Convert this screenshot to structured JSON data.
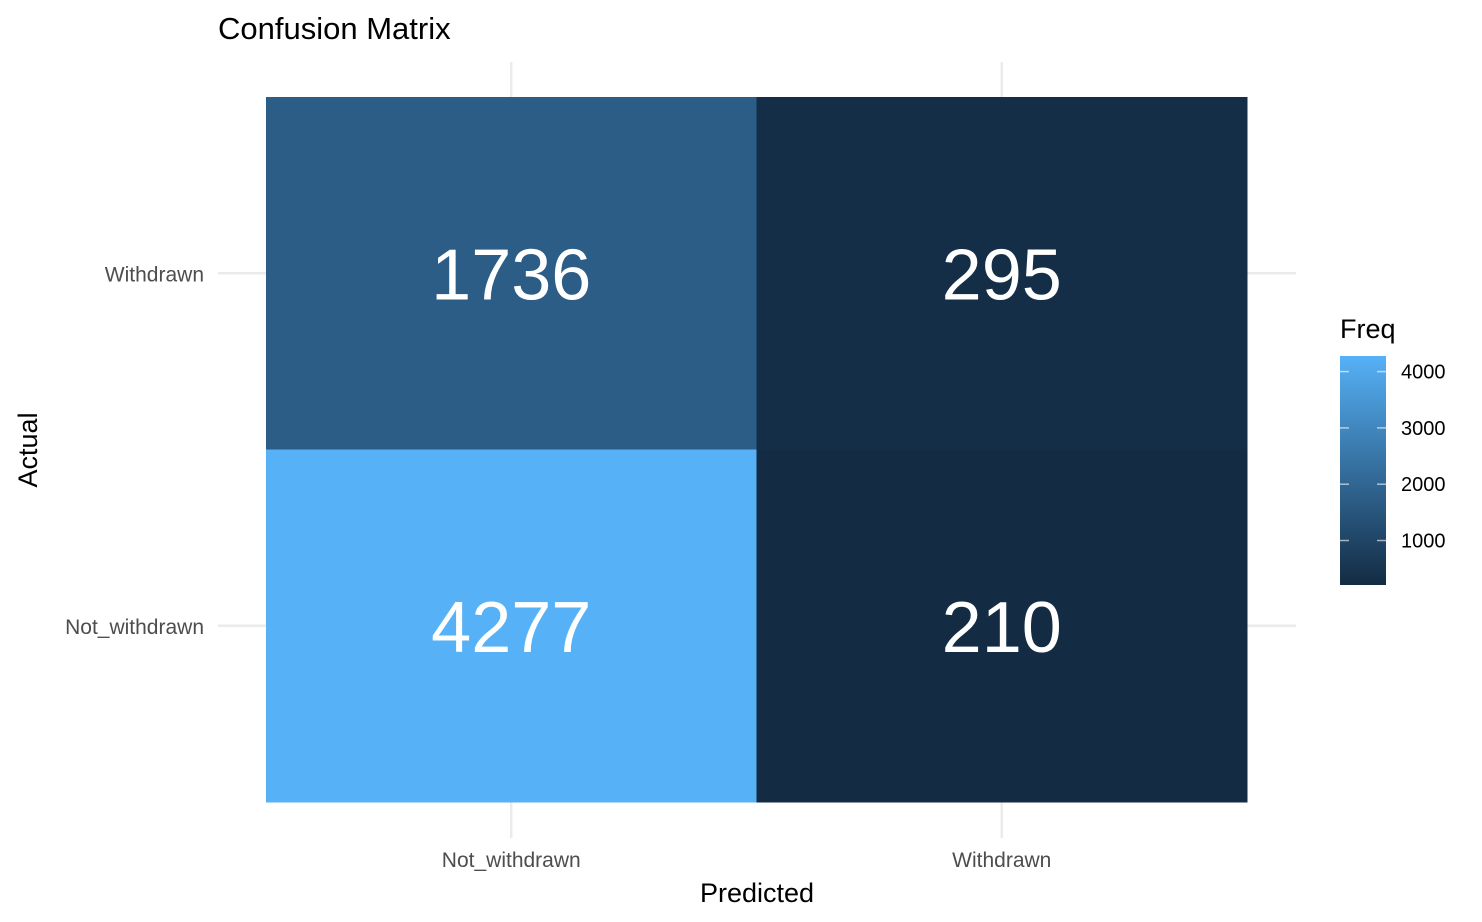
{
  "chart_data": {
    "type": "heatmap",
    "title": "Confusion Matrix",
    "xlabel": "Predicted",
    "ylabel": "Actual",
    "x_categories": [
      "Not_withdrawn",
      "Withdrawn"
    ],
    "y_categories": [
      "Not_withdrawn",
      "Withdrawn"
    ],
    "cells": [
      {
        "x": "Not_withdrawn",
        "y": "Withdrawn",
        "value": 1736
      },
      {
        "x": "Withdrawn",
        "y": "Withdrawn",
        "value": 295
      },
      {
        "x": "Not_withdrawn",
        "y": "Not_withdrawn",
        "value": 4277
      },
      {
        "x": "Withdrawn",
        "y": "Not_withdrawn",
        "value": 210
      }
    ],
    "legend": {
      "title": "Freq",
      "placement": "right",
      "ticks": [
        1000,
        2000,
        3000,
        4000
      ],
      "low_color": "#132B43",
      "high_color": "#56B1F7"
    },
    "grid": true
  }
}
